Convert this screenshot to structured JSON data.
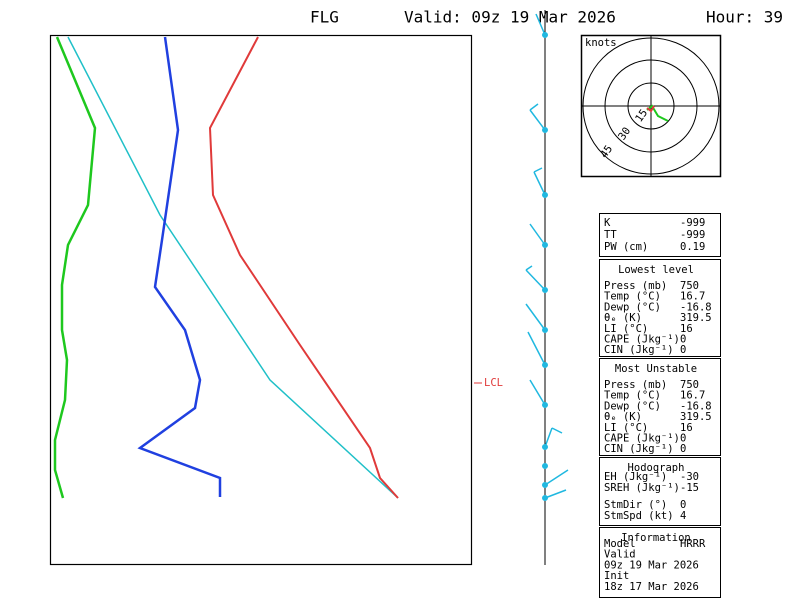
{
  "header": {
    "station": "FLG",
    "valid": "Valid: 09z 19 Mar 2026",
    "hour": "Hour: 39"
  },
  "lcl_label": "LCL",
  "hodograph": {
    "units": "knots",
    "rings": [
      "15",
      "30",
      "45"
    ]
  },
  "info": {
    "sections": [
      {
        "rows": [
          [
            "K",
            "-999"
          ],
          [
            "TT",
            "-999"
          ],
          [
            "PW (cm)",
            "0.19"
          ]
        ]
      },
      {
        "title": "Lowest level",
        "rows": [
          [
            "Press (mb)",
            "750"
          ],
          [
            "Temp (°C)",
            "16.7"
          ],
          [
            "Dewp (°C)",
            "-16.8"
          ],
          [
            "θₑ (K)",
            "319.5"
          ],
          [
            "LI (°C)",
            "16"
          ],
          [
            "CAPE (Jkg⁻¹)",
            "0"
          ],
          [
            "CIN (Jkg⁻¹)",
            "0"
          ]
        ]
      },
      {
        "title": "Most Unstable",
        "rows": [
          [
            "Press (mb)",
            "750"
          ],
          [
            "Temp (°C)",
            "16.7"
          ],
          [
            "Dewp (°C)",
            "-16.8"
          ],
          [
            "θₑ (K)",
            "319.5"
          ],
          [
            "LI (°C)",
            "16"
          ],
          [
            "CAPE (Jkg⁻¹)",
            "0"
          ],
          [
            "CIN (Jkg⁻¹)",
            "0"
          ]
        ]
      },
      {
        "title": "Hodograph",
        "rows": [
          [
            "EH (Jkg⁻¹)",
            "-30"
          ],
          [
            "SREH (Jkg⁻¹)",
            "-15"
          ],
          [
            "StmDir (°)",
            "0"
          ],
          [
            "StmSpd (kt)",
            "4"
          ]
        ]
      },
      {
        "title": "Information",
        "rows": [
          [
            "Model",
            "HRRR"
          ],
          [
            "Valid"
          ],
          [
            "09z 19 Mar 2026"
          ],
          [
            "Init"
          ],
          [
            "18z 17 Mar 2026"
          ]
        ]
      }
    ]
  }
}
